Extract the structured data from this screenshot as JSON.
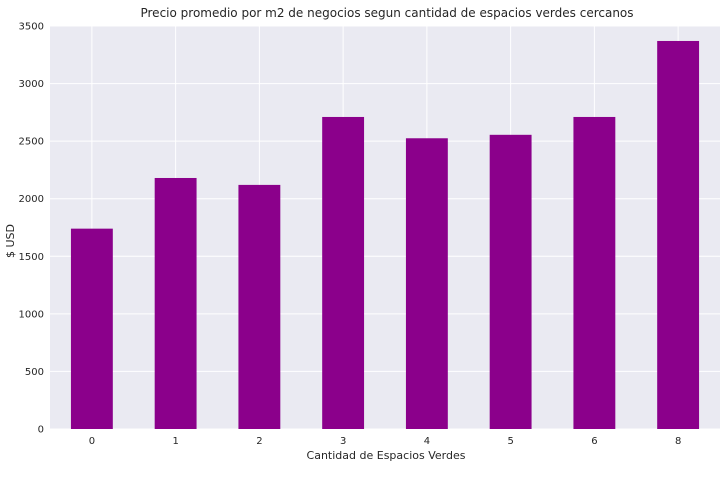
{
  "chart_data": {
    "type": "bar",
    "title": "Precio promedio por m2 de negocios segun cantidad de espacios verdes cercanos",
    "xlabel": "Cantidad de Espacios Verdes",
    "ylabel": "$ USD",
    "categories": [
      "0",
      "1",
      "2",
      "3",
      "4",
      "5",
      "6",
      "8"
    ],
    "values": [
      1740,
      2180,
      2120,
      2710,
      2525,
      2555,
      2710,
      3370
    ],
    "ylim": [
      0,
      3500
    ],
    "yticks": [
      0,
      500,
      1000,
      1500,
      2000,
      2500,
      3000,
      3500
    ],
    "grid": true,
    "legend": "none",
    "colors": {
      "bar": "#8b008b",
      "plot_bg": "#eaeaf2",
      "grid": "#ffffff"
    }
  }
}
